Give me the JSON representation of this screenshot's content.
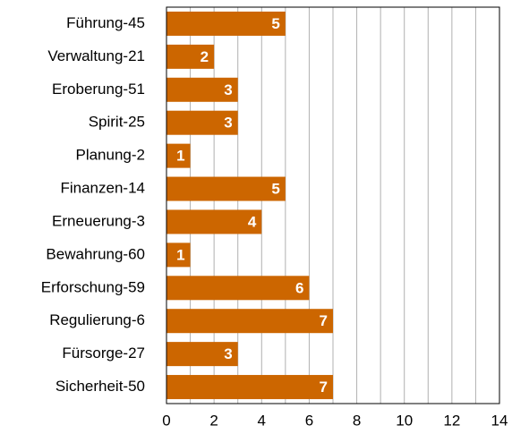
{
  "chart_data": {
    "type": "barh",
    "categories": [
      "Führung-45",
      "Verwaltung-21",
      "Eroberung-51",
      "Spirit-25",
      "Planung-2",
      "Finanzen-14",
      "Erneuerung-3",
      "Bewahrung-60",
      "Erforschung-59",
      "Regulierung-6",
      "Fürsorge-27",
      "Sicherheit-50"
    ],
    "values": [
      5,
      2,
      3,
      3,
      1,
      5,
      4,
      1,
      6,
      7,
      3,
      7
    ],
    "color": "#cc6600",
    "xlim": [
      0,
      14
    ],
    "xticks": [
      0,
      2,
      4,
      6,
      8,
      10,
      12,
      14
    ],
    "grid": true
  }
}
